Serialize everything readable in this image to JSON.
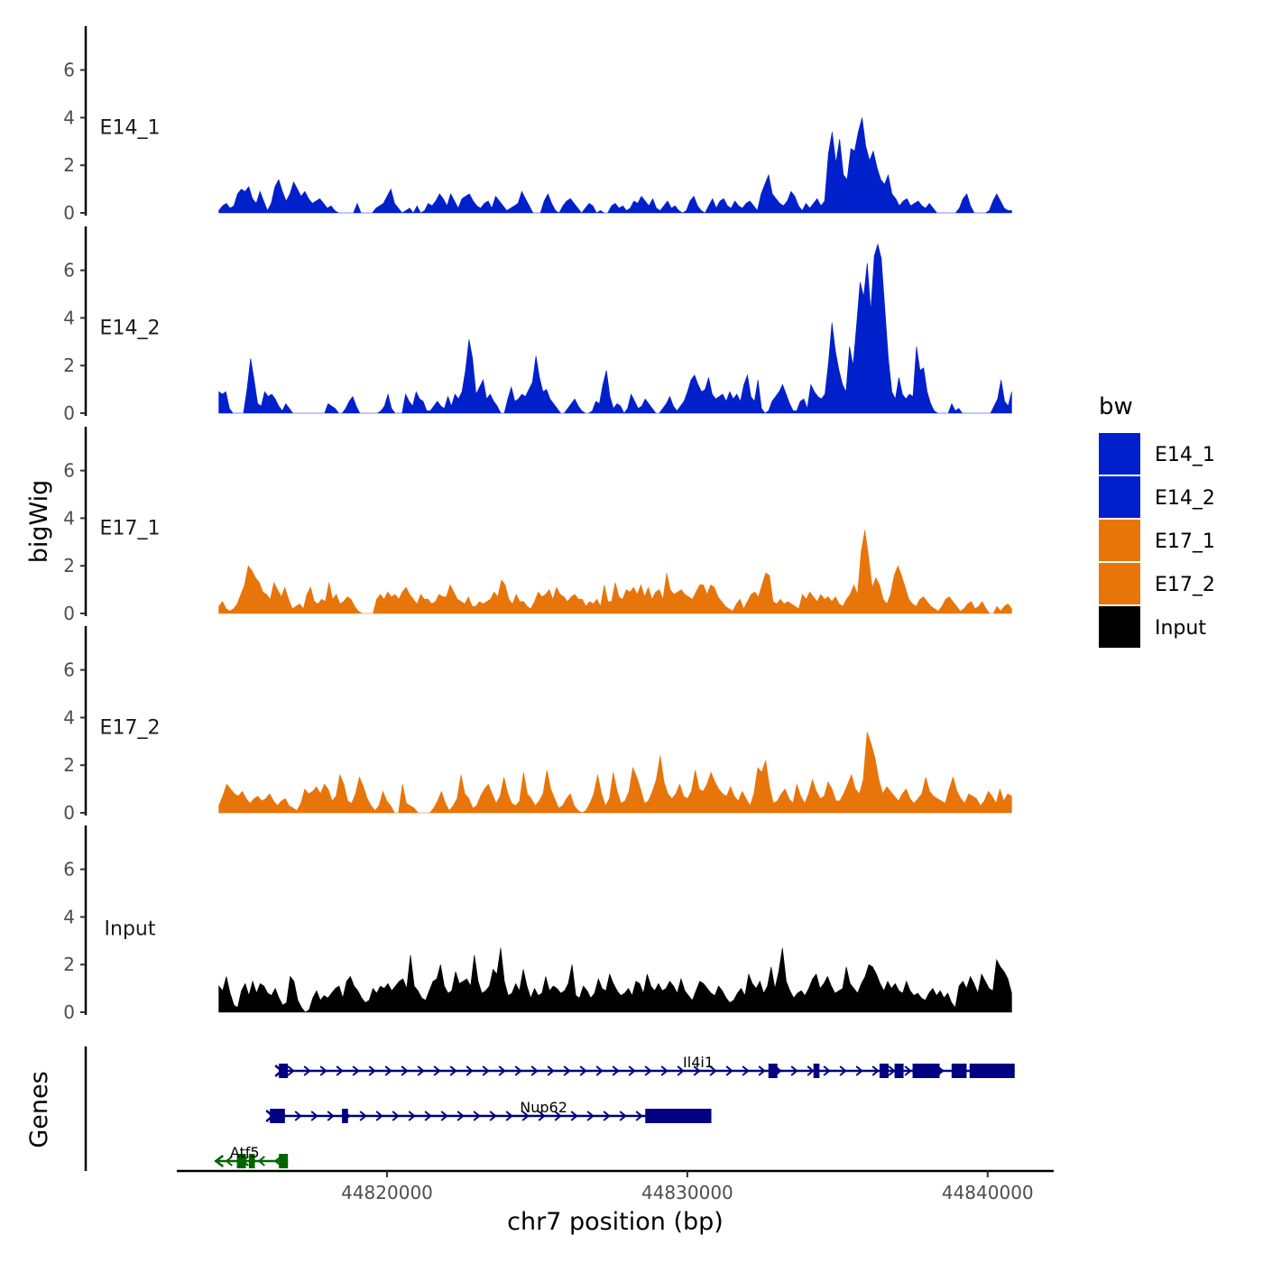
{
  "chart_data": {
    "type": "area",
    "title": "",
    "ylabel": "bigWig",
    "genes_label": "Genes",
    "xlabel": "chr7 position (bp)",
    "xlim": [
      44813000,
      44842200
    ],
    "data_xrange": [
      44814400,
      44840800
    ],
    "ylim": [
      0,
      7.5
    ],
    "y_ticks": [
      0,
      2,
      4,
      6
    ],
    "x_ticks": [
      44820000,
      44830000,
      44840000
    ],
    "x_tick_labels": [
      "44820000",
      "44830000",
      "44840000"
    ],
    "legend": {
      "title": "bw",
      "entries": [
        {
          "name": "E14_1",
          "color": "#0020CC"
        },
        {
          "name": "E14_2",
          "color": "#0020CC"
        },
        {
          "name": "E17_1",
          "color": "#E8750A"
        },
        {
          "name": "E17_2",
          "color": "#E8750A"
        },
        {
          "name": "Input",
          "color": "#000000"
        }
      ]
    },
    "series": [
      {
        "name": "E14_1",
        "color": "#0020CC",
        "values": [
          0.1,
          0.3,
          0.4,
          0.2,
          0.3,
          0.8,
          1.0,
          0.9,
          1.1,
          0.6,
          0.4,
          0.9,
          0.5,
          0.1,
          0.4,
          1.1,
          1.4,
          0.9,
          0.5,
          0.8,
          1.3,
          1.0,
          0.7,
          0.9,
          0.6,
          0.4,
          0.5,
          0.6,
          0.4,
          0.2,
          0.3,
          0.1,
          0,
          0,
          0,
          0,
          0,
          0.4,
          0,
          0,
          0,
          0,
          0.2,
          0.3,
          0.4,
          0.7,
          1.0,
          0.4,
          0.2,
          0,
          0.1,
          0.2,
          0,
          0.3,
          0,
          0.1,
          0.4,
          0.3,
          0.5,
          0.8,
          0.6,
          0.3,
          0.8,
          0.5,
          0.2,
          0.6,
          0.7,
          0.8,
          0.5,
          0.3,
          0.2,
          0.4,
          0.5,
          0.2,
          0.7,
          0.5,
          0.3,
          0.1,
          0.2,
          0.3,
          0.4,
          0.9,
          0.6,
          0.3,
          0,
          0,
          0,
          0.5,
          0.8,
          0.4,
          0.1,
          0,
          0.3,
          0.5,
          0.6,
          0.4,
          0.2,
          0,
          0.2,
          0.4,
          0.3,
          0,
          0.1,
          0,
          0,
          0.3,
          0.4,
          0.2,
          0.3,
          0.1,
          0.2,
          0.5,
          0.4,
          0.7,
          0.5,
          0.3,
          0.6,
          0.2,
          0.1,
          0.3,
          0.5,
          0.2,
          0.3,
          0.1,
          0,
          0.1,
          0.5,
          0.7,
          0.3,
          0.1,
          0,
          0.3,
          0.6,
          0.2,
          0.5,
          0.6,
          0.3,
          0.2,
          0.5,
          0.3,
          0.2,
          0.4,
          0.5,
          0.3,
          0.1,
          0.8,
          1.2,
          1.6,
          0.8,
          0.6,
          0.4,
          0.3,
          0.5,
          0.9,
          0.7,
          0.3,
          0.1,
          0.4,
          0.2,
          0.4,
          0.6,
          0.3,
          0.5,
          2.5,
          3.4,
          2.1,
          3.1,
          1.6,
          1.4,
          2.7,
          2.6,
          3.4,
          4.0,
          2.8,
          2.2,
          2.6,
          1.9,
          1.4,
          1.2,
          1.6,
          0.8,
          0.6,
          0.3,
          0.5,
          0.6,
          0.3,
          0.4,
          0.5,
          0.3,
          0.2,
          0.4,
          0.2,
          0,
          0,
          0,
          0,
          0,
          0,
          0.2,
          0.6,
          0.8,
          0.3,
          0,
          0,
          0,
          0,
          0.1,
          0.5,
          0.8,
          0.5,
          0.2,
          0.1,
          0.1
        ]
      },
      {
        "name": "E14_2",
        "color": "#0020CC",
        "values": [
          0.9,
          0.8,
          0.9,
          0.2,
          0,
          0,
          0,
          0,
          1.0,
          2.3,
          1.4,
          0.4,
          0.3,
          0.9,
          0.7,
          0.8,
          0.6,
          0.3,
          0.1,
          0.4,
          0.2,
          0,
          0,
          0,
          0,
          0,
          0,
          0,
          0,
          0,
          0,
          0.4,
          0.3,
          0.2,
          0,
          0,
          0.2,
          0.5,
          0.7,
          0.3,
          0,
          0,
          0,
          0,
          0,
          0,
          0.1,
          0.3,
          0.8,
          0.2,
          0,
          0,
          0,
          0.8,
          0.5,
          0.3,
          0.9,
          0.6,
          0.5,
          0.1,
          0.1,
          0.3,
          0.5,
          0.3,
          0.2,
          0.7,
          0.3,
          0.8,
          0.6,
          0.9,
          1.8,
          3.1,
          2.3,
          0.8,
          1.1,
          1.4,
          0.6,
          0.8,
          0.5,
          0.3,
          0,
          0,
          0.6,
          1.1,
          0.5,
          0.6,
          0.8,
          0.7,
          1.0,
          1.3,
          2.4,
          1.5,
          0.9,
          1.0,
          0.6,
          0.4,
          0.2,
          0,
          0,
          0.2,
          0.4,
          0.6,
          0.3,
          0.1,
          0,
          0,
          0.1,
          0.5,
          0.4,
          1.2,
          1.8,
          0.7,
          0.2,
          0.4,
          0.3,
          0,
          0.2,
          0.8,
          0.5,
          0.2,
          0.3,
          0.6,
          0.4,
          0.2,
          0,
          0,
          0.2,
          0.4,
          0.7,
          0.3,
          0.1,
          0.3,
          0.5,
          0.9,
          1.4,
          1.6,
          1.2,
          0.9,
          1.0,
          1.5,
          0.8,
          0.6,
          0.7,
          0.8,
          0.5,
          0.9,
          0.6,
          0.8,
          0.5,
          1.2,
          1.6,
          0.7,
          0.5,
          1.4,
          0.2,
          0,
          0.1,
          0.5,
          0.7,
          0.9,
          1.2,
          0.8,
          0.4,
          0.1,
          0.1,
          0.5,
          0.6,
          0.2,
          1.2,
          0.9,
          0.7,
          0.6,
          0.8,
          2.1,
          3.8,
          2.6,
          1.8,
          1.2,
          0.9,
          2.8,
          2.0,
          3.7,
          5.5,
          4.9,
          6.3,
          4.3,
          6.6,
          7.1,
          6.5,
          4.4,
          2.3,
          0.9,
          0.6,
          1.5,
          0.8,
          0.6,
          0.8,
          0.7,
          2.8,
          1.8,
          1.9,
          0.9,
          0.4,
          0.1,
          0,
          0,
          0,
          0,
          0.4,
          0.1,
          0.2,
          0,
          0,
          0,
          0,
          0,
          0,
          0,
          0,
          0,
          0.3,
          0.6,
          1.4,
          0.5,
          0.3,
          0.9
        ]
      },
      {
        "name": "E17_1",
        "color": "#E8750A",
        "values": [
          0.3,
          0.5,
          0.2,
          0.1,
          0.2,
          0.4,
          0.8,
          1.2,
          2.0,
          1.8,
          1.5,
          1.3,
          0.9,
          0.8,
          0.6,
          1.3,
          1.0,
          0.7,
          1.1,
          0.6,
          0.2,
          0.3,
          0.4,
          0.2,
          0.8,
          1.1,
          0.5,
          0.4,
          0.6,
          0.5,
          1.3,
          0.6,
          0.8,
          0.4,
          0.5,
          0.7,
          0.6,
          0.3,
          0.1,
          0,
          0,
          0,
          0,
          0.6,
          0.8,
          0.6,
          0.9,
          0.7,
          0.8,
          0.6,
          0.9,
          1.1,
          0.8,
          0.6,
          0.4,
          0.8,
          0.6,
          0.6,
          0.4,
          0.5,
          0.8,
          0.7,
          0.7,
          1.2,
          0.9,
          0.6,
          0.5,
          0.4,
          0.7,
          0.3,
          0.3,
          0.5,
          0.4,
          0.5,
          0.6,
          0.9,
          0.7,
          1.4,
          1.2,
          0.6,
          0.4,
          0.8,
          0.5,
          0.5,
          0.3,
          0.2,
          0.5,
          0.9,
          0.7,
          0.8,
          1.0,
          0.6,
          1.1,
          0.8,
          0.7,
          0.5,
          0.7,
          0.8,
          0.6,
          0.6,
          0.3,
          0.5,
          0.4,
          0.6,
          0.3,
          1.2,
          0.5,
          0.5,
          1.3,
          0.7,
          0.6,
          1.0,
          0.9,
          1.1,
          0.8,
          1.2,
          0.7,
          1.1,
          0.6,
          0.9,
          1.0,
          0.6,
          1.7,
          1.0,
          0.8,
          0.9,
          1.0,
          0.8,
          0.7,
          0.6,
          0.9,
          1.2,
          1.2,
          0.8,
          1.2,
          1.1,
          0.7,
          0.5,
          0.3,
          0.2,
          0.1,
          0.4,
          0.6,
          0.2,
          0.5,
          0.8,
          0.9,
          0.7,
          1.2,
          1.7,
          1.6,
          0.5,
          0.4,
          0.6,
          0.4,
          0.5,
          0.4,
          0.3,
          0.2,
          0.8,
          0.6,
          0.9,
          0.7,
          0.5,
          0.8,
          0.6,
          0.7,
          0.5,
          0.7,
          0.4,
          0.3,
          0.6,
          0.8,
          1.2,
          0.8,
          2.6,
          3.5,
          2.4,
          1.1,
          1.5,
          1.2,
          0.6,
          0.4,
          0.8,
          1.6,
          2.0,
          1.6,
          1.1,
          0.6,
          0.4,
          0.3,
          0.6,
          0.7,
          0.5,
          0.3,
          0.2,
          0.1,
          0.3,
          0.6,
          0.7,
          0.5,
          0.3,
          0.1,
          0.2,
          0.4,
          0.5,
          0.2,
          0.3,
          0.5,
          0.2,
          0,
          0,
          0.3,
          0.1,
          0.3,
          0.4,
          0.2
        ]
      },
      {
        "name": "E17_2",
        "color": "#E8750A",
        "values": [
          0.3,
          0.7,
          1.2,
          1.0,
          0.8,
          0.7,
          0.9,
          0.6,
          0.4,
          0.6,
          0.7,
          0.5,
          0.6,
          0.8,
          0.5,
          0.3,
          0.5,
          0.6,
          0.3,
          0.2,
          0.1,
          0.4,
          1.0,
          0.8,
          0.9,
          1.1,
          0.8,
          1.2,
          1.0,
          0.5,
          0.7,
          1.6,
          1.2,
          0.5,
          0.4,
          0.8,
          1.5,
          1.1,
          0.6,
          0.3,
          0.1,
          0.3,
          0.9,
          0.5,
          0.3,
          0,
          0,
          1.2,
          0.4,
          0.3,
          0.2,
          0,
          0,
          0,
          0,
          0.2,
          0.5,
          0.9,
          0.4,
          0.1,
          0.3,
          0.6,
          1.6,
          0.8,
          0.6,
          0.2,
          0.3,
          0.7,
          1.0,
          1.2,
          0.8,
          0.4,
          0.7,
          1.5,
          0.8,
          0.4,
          0.3,
          0.5,
          1.7,
          0.8,
          0.6,
          0.3,
          0.5,
          0.8,
          1.8,
          1.0,
          0.6,
          0.2,
          0.3,
          0.6,
          0.8,
          0.3,
          0.1,
          0,
          0.1,
          0.4,
          0.8,
          1.6,
          0.8,
          0.3,
          0.6,
          1.7,
          0.9,
          0.4,
          0.5,
          0.9,
          1.9,
          1.5,
          1.0,
          0.4,
          0.5,
          0.9,
          1.4,
          2.4,
          1.3,
          0.8,
          0.6,
          0.8,
          1.2,
          0.7,
          0.6,
          0.9,
          1.8,
          1.0,
          0.9,
          1.2,
          1.7,
          1.3,
          1.0,
          0.8,
          0.7,
          1.1,
          0.7,
          0.5,
          0.9,
          0.6,
          0.3,
          0.8,
          1.9,
          1.7,
          2.2,
          1.1,
          0.4,
          0.5,
          0.8,
          1.0,
          0.6,
          0.4,
          1.2,
          0.7,
          0.4,
          0.8,
          1.4,
          0.9,
          0.6,
          0.7,
          1.3,
          1.0,
          0.5,
          0.5,
          0.8,
          1.2,
          1.6,
          1.0,
          0.8,
          1.4,
          3.4,
          2.9,
          2.3,
          1.4,
          0.8,
          1.1,
          0.9,
          0.7,
          0.5,
          0.8,
          1.0,
          0.6,
          0.4,
          0.6,
          0.8,
          1.5,
          0.9,
          0.7,
          0.6,
          0.5,
          0.4,
          1.0,
          1.5,
          0.9,
          0.6,
          0.4,
          0.8,
          0.7,
          0.6,
          0.3,
          0.5,
          0.9,
          0.7,
          0.4,
          1.0,
          0.5,
          0.8,
          0.7
        ]
      },
      {
        "name": "Input",
        "color": "#000000",
        "values": [
          1.1,
          0.9,
          1.5,
          0.8,
          0.3,
          0.2,
          0.9,
          1.2,
          0.7,
          1.3,
          0.8,
          1.2,
          1.1,
          0.8,
          0.7,
          1.0,
          0.6,
          0.3,
          0.4,
          1.5,
          1.3,
          0.5,
          0.2,
          0,
          0.1,
          0.6,
          0.9,
          0.5,
          0.7,
          0.6,
          0.8,
          1.0,
          1.1,
          0.6,
          1.3,
          1.5,
          1.1,
          0.9,
          0.6,
          0.4,
          0.5,
          1.0,
          0.8,
          1.1,
          1.0,
          1.2,
          0.9,
          1.1,
          1.3,
          1.4,
          1.0,
          2.4,
          1.1,
          0.9,
          0.6,
          0.5,
          0.9,
          1.3,
          1.4,
          2.0,
          1.1,
          0.8,
          0.9,
          1.7,
          1.2,
          1.3,
          1.4,
          1.1,
          2.4,
          1.3,
          0.8,
          0.9,
          1.1,
          1.8,
          1.6,
          2.7,
          1.3,
          0.7,
          0.8,
          1.2,
          0.9,
          1.8,
          1.1,
          0.6,
          1.0,
          0.7,
          0.8,
          1.5,
          0.9,
          1.1,
          1.0,
          0.8,
          0.9,
          1.2,
          2.0,
          0.7,
          0.6,
          1.1,
          0.9,
          0.6,
          0.8,
          1.4,
          1.0,
          0.9,
          1.6,
          1.2,
          0.9,
          0.7,
          0.8,
          1.0,
          0.7,
          1.3,
          1.2,
          0.8,
          1.6,
          1.1,
          0.9,
          1.2,
          0.9,
          1.0,
          1.3,
          1.1,
          0.8,
          1.4,
          0.9,
          0.7,
          0.5,
          0.9,
          1.3,
          1.2,
          1.0,
          0.8,
          0.7,
          1.1,
          0.9,
          0.6,
          0.4,
          0.5,
          0.8,
          1.0,
          0.7,
          1.6,
          1.2,
          1.0,
          1.3,
          0.8,
          1.1,
          1.9,
          1.0,
          1.7,
          2.7,
          1.3,
          0.9,
          0.6,
          0.8,
          0.9,
          0.7,
          1.0,
          1.4,
          1.6,
          1.0,
          1.2,
          1.5,
          1.1,
          0.8,
          0.9,
          1.0,
          1.9,
          1.2,
          1.0,
          0.8,
          1.2,
          1.5,
          2.0,
          1.9,
          1.6,
          1.2,
          0.9,
          1.3,
          1.0,
          1.2,
          0.9,
          0.8,
          1.3,
          0.9,
          0.7,
          0.8,
          0.6,
          0.5,
          0.8,
          1.0,
          0.7,
          0.9,
          0.6,
          0.8,
          0.4,
          0.2,
          1.1,
          1.3,
          1.0,
          1.5,
          1.2,
          0.8,
          1.6,
          1.3,
          1.0,
          0.9,
          2.2,
          1.9,
          1.7,
          1.4,
          0.8
        ]
      }
    ],
    "genes": [
      {
        "name": "Il4i1",
        "strand": "+",
        "color": "#000080",
        "start": 44816400,
        "end": 44840900,
        "exons": [
          [
            44816400,
            44816700
          ],
          [
            44832700,
            44833000
          ],
          [
            44834200,
            44834400
          ],
          [
            44836400,
            44836700
          ],
          [
            44836900,
            44837200
          ],
          [
            44837500,
            44838400
          ],
          [
            44838800,
            44839300
          ],
          [
            44839400,
            44840900
          ]
        ]
      },
      {
        "name": "Nup62",
        "strand": "+",
        "color": "#000080",
        "start": 44816100,
        "end": 44830800,
        "exons": [
          [
            44816100,
            44816600
          ],
          [
            44818500,
            44818700
          ],
          [
            44828600,
            44830800
          ]
        ]
      },
      {
        "name": "Atf5",
        "strand": "-",
        "color": "#006400",
        "start": 44814300,
        "end": 44816700,
        "exons": [
          [
            44815000,
            44815300
          ],
          [
            44815400,
            44815600
          ],
          [
            44816400,
            44816700
          ]
        ]
      }
    ]
  }
}
